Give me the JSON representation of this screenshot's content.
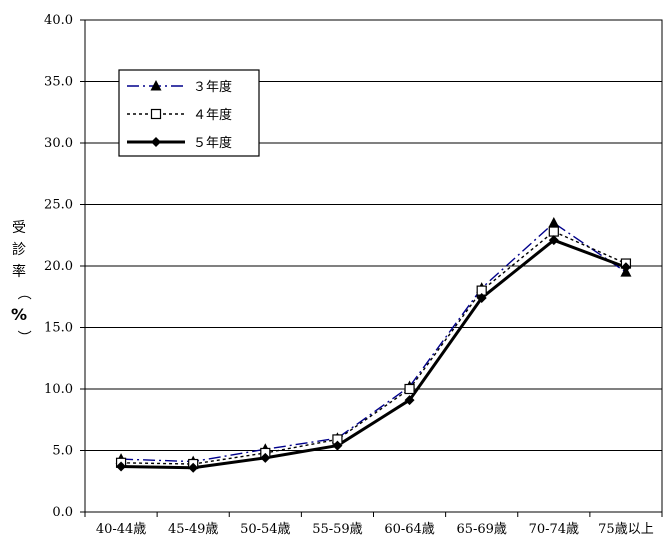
{
  "chart_data": {
    "type": "line",
    "title": "",
    "xlabel": "",
    "ylabel": "受診率（%）",
    "categories": [
      "40-44歳",
      "45-49歳",
      "50-54歳",
      "55-59歳",
      "60-64歳",
      "65-69歳",
      "70-74歳",
      "75歳以上"
    ],
    "ylim": [
      0,
      40
    ],
    "yticks": [
      "0.0",
      "5.0",
      "10.0",
      "15.0",
      "20.0",
      "25.0",
      "30.0",
      "35.0",
      "40.0"
    ],
    "grid": "horizontal",
    "legend_position": "top-left",
    "series": [
      {
        "name": "３年度",
        "values": [
          4.3,
          4.1,
          5.1,
          6.0,
          10.2,
          18.2,
          23.5,
          19.5
        ],
        "color": "#00008B",
        "marker": "triangle",
        "dash": "dash-dot"
      },
      {
        "name": "４年度",
        "values": [
          4.0,
          3.9,
          4.8,
          5.9,
          10.0,
          18.0,
          22.8,
          20.2
        ],
        "color": "#000000",
        "marker": "square",
        "dash": "dotted"
      },
      {
        "name": "５年度",
        "values": [
          3.7,
          3.6,
          4.4,
          5.4,
          9.1,
          17.4,
          22.1,
          19.9
        ],
        "color": "#000000",
        "marker": "diamond",
        "dash": "solid"
      }
    ]
  }
}
